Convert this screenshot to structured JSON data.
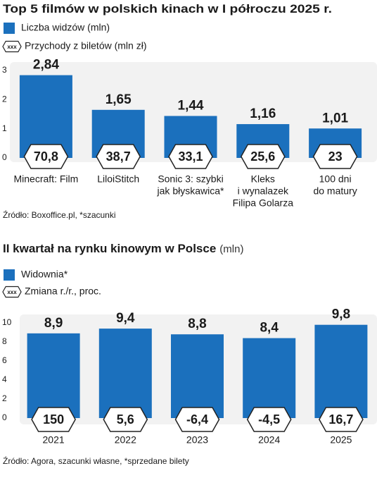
{
  "chart_data": [
    {
      "type": "bar",
      "title": "Top 5 filmów w polskich kinach w I półroczu 2025 r.",
      "categories": [
        [
          "Minecraft: Film"
        ],
        [
          "LiloiStitch"
        ],
        [
          "Sonic 3: szybki",
          "jak błyskawica*"
        ],
        [
          "Kleks",
          "i wynalazek",
          "Filipa Golarza"
        ],
        [
          "100 dni",
          "do matury"
        ]
      ],
      "series": [
        {
          "name": "Liczba widzów (mln)",
          "color": "#1b70bd",
          "values": [
            2.84,
            1.65,
            1.44,
            1.16,
            1.01
          ],
          "value_labels": [
            "2,84",
            "1,65",
            "1,44",
            "1,16",
            "1,01"
          ]
        },
        {
          "name": "Przychody z biletów (mln zł)",
          "marker": "xxx",
          "values": [
            70.8,
            38.7,
            33.1,
            25.6,
            23
          ],
          "value_labels": [
            "70,8",
            "38,7",
            "33,1",
            "25,6",
            "23"
          ]
        }
      ],
      "ylim": [
        0,
        3
      ],
      "yticks": [
        0,
        1,
        2,
        3
      ],
      "source": "Źródło: Boxoffice.pl, *szacunki"
    },
    {
      "type": "bar",
      "title": "II kwartał na rynku kinowym w Polsce",
      "unit": "(mln)",
      "categories": [
        [
          "2021"
        ],
        [
          "2022"
        ],
        [
          "2023"
        ],
        [
          "2024"
        ],
        [
          "2025"
        ]
      ],
      "series": [
        {
          "name": "Widownia*",
          "color": "#1b70bd",
          "values": [
            8.9,
            9.4,
            8.8,
            8.4,
            9.8
          ],
          "value_labels": [
            "8,9",
            "9,4",
            "8,8",
            "8,4",
            "9,8"
          ]
        },
        {
          "name": "Zmiana r./r., proc.",
          "marker": "xxx",
          "values": [
            150,
            5.6,
            -6.4,
            -4.5,
            16.7
          ],
          "value_labels": [
            "150",
            "5,6",
            "-6,4",
            "-4,5",
            "16,7"
          ]
        }
      ],
      "ylim": [
        0,
        10
      ],
      "yticks": [
        0,
        2,
        4,
        6,
        8,
        10
      ],
      "source": "Źródło: Agora, szacunki własne, *sprzedane bilety"
    }
  ]
}
